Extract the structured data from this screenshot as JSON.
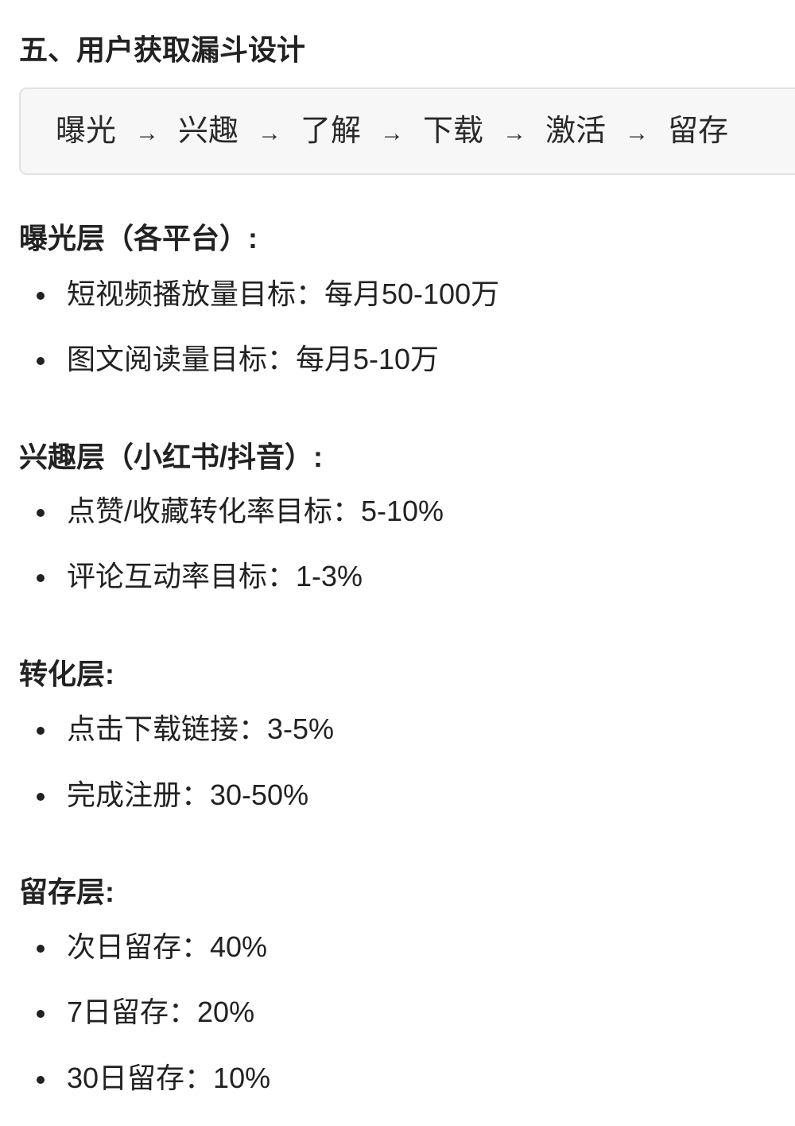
{
  "title": "五、用户获取漏斗设计",
  "flow": [
    "曝光",
    "兴趣",
    "了解",
    "下载",
    "激活",
    "留存"
  ],
  "flow_arrow": "→",
  "sections": [
    {
      "heading": "曝光层（各平台）:",
      "items": [
        "短视频播放量目标：每月50-100万",
        "图文阅读量目标：每月5-10万"
      ]
    },
    {
      "heading": "兴趣层（小红书/抖音）:",
      "items": [
        "点赞/收藏转化率目标：5-10%",
        "评论互动率目标：1-3%"
      ]
    },
    {
      "heading": "转化层:",
      "items": [
        "点击下载链接：3-5%",
        "完成注册：30-50%"
      ]
    },
    {
      "heading": "留存层:",
      "items": [
        "次日留存：40%",
        "7日留存：20%",
        "30日留存：10%"
      ]
    }
  ]
}
